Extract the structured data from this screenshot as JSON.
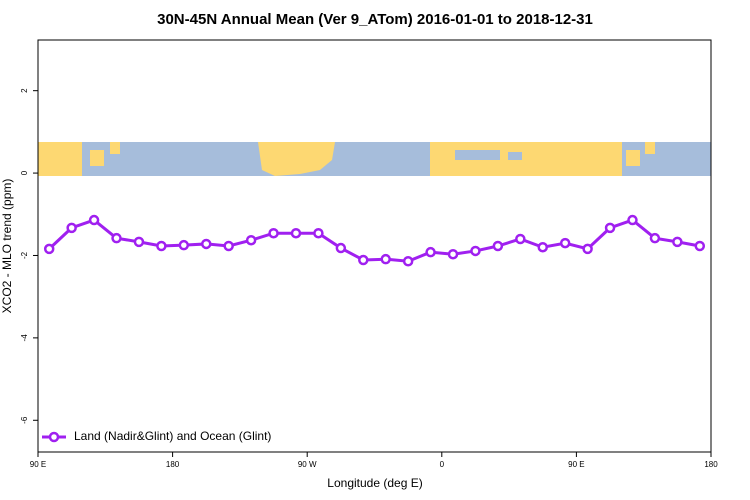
{
  "chart_data": {
    "type": "line",
    "title": "30N-45N Annual Mean (Ver 9_ATom)   2016-01-01 to 2018-12-31",
    "x_label": "Longitude (deg E)",
    "y_label": "XCO2 - MLO trend (ppm)",
    "x": [
      97.5,
      112.5,
      127.5,
      142.5,
      157.5,
      172.5,
      187.5,
      202.5,
      217.5,
      232.5,
      247.5,
      262.5,
      277.5,
      292.5,
      307.5,
      322.5,
      337.5,
      352.5,
      367.5,
      382.5,
      397.5,
      412.5,
      427.5,
      442.5,
      457.5,
      472.5,
      487.5,
      502.5,
      517.5,
      532.5
    ],
    "series": [
      {
        "name": "Land (Nadir&Glint) and Ocean (Glint)",
        "color": "#a020f0",
        "values": [
          -1.84,
          -1.33,
          -1.14,
          -1.58,
          -1.67,
          -1.77,
          -1.75,
          -1.72,
          -1.77,
          -1.63,
          -1.46,
          -1.46,
          -1.46,
          -1.82,
          -2.11,
          -2.09,
          -2.14,
          -1.92,
          -1.97,
          -1.89,
          -1.77,
          -1.6,
          -1.8,
          -1.7,
          -1.84,
          -1.33,
          -1.14,
          -1.58,
          -1.67,
          -1.77
        ]
      }
    ],
    "xlim": [
      90,
      540
    ],
    "xticks": [
      {
        "value": 90,
        "label": "90 E"
      },
      {
        "value": 180,
        "label": "180"
      },
      {
        "value": 270,
        "label": "90 W"
      },
      {
        "value": 360,
        "label": "0"
      },
      {
        "value": 450,
        "label": "90 E"
      },
      {
        "value": 540,
        "label": "180"
      }
    ],
    "ylim": [
      -6.77,
      3.23
    ],
    "yticks": [
      -6,
      -4,
      -2,
      0,
      2
    ],
    "legend": "bottom-left"
  }
}
